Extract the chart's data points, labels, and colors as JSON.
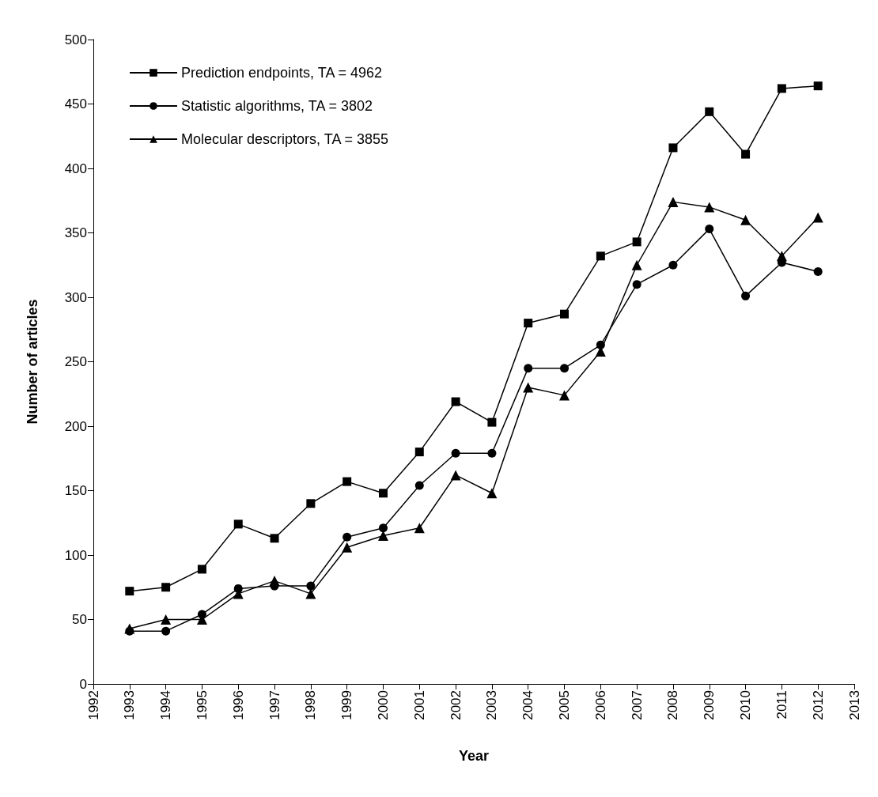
{
  "chart_data": {
    "type": "line",
    "xlabel": "Year",
    "ylabel": "Number of articles",
    "x": [
      1993,
      1994,
      1995,
      1996,
      1997,
      1998,
      1999,
      2000,
      2001,
      2002,
      2003,
      2004,
      2005,
      2006,
      2007,
      2008,
      2009,
      2010,
      2011,
      2012
    ],
    "xlim": [
      1992,
      2013
    ],
    "xticks": [
      1992,
      1993,
      1994,
      1995,
      1996,
      1997,
      1998,
      1999,
      2000,
      2001,
      2002,
      2003,
      2004,
      2005,
      2006,
      2007,
      2008,
      2009,
      2010,
      2011,
      2012,
      2013
    ],
    "ylim": [
      0,
      500
    ],
    "yticks": [
      0,
      50,
      100,
      150,
      200,
      250,
      300,
      350,
      400,
      450,
      500
    ],
    "grid": false,
    "legend": "top left",
    "line_style": "solid",
    "series": [
      {
        "name": "Prediction endpoints, TA = 4962",
        "color": "#000000",
        "marker": "square",
        "values": [
          72,
          75,
          89,
          124,
          113,
          140,
          157,
          148,
          180,
          219,
          203,
          280,
          287,
          332,
          343,
          416,
          444,
          411,
          462,
          464
        ]
      },
      {
        "name": "Statistic algorithms, TA = 3802",
        "color": "#000000",
        "marker": "circle",
        "values": [
          41,
          41,
          54,
          74,
          76,
          76,
          114,
          121,
          154,
          179,
          179,
          245,
          245,
          263,
          310,
          325,
          353,
          301,
          327,
          320
        ]
      },
      {
        "name": "Molecular descriptors, TA = 3855",
        "color": "#000000",
        "marker": "triangle",
        "values": [
          43,
          50,
          50,
          70,
          80,
          70,
          106,
          115,
          121,
          162,
          148,
          230,
          224,
          258,
          325,
          374,
          370,
          360,
          332,
          362
        ]
      }
    ]
  }
}
